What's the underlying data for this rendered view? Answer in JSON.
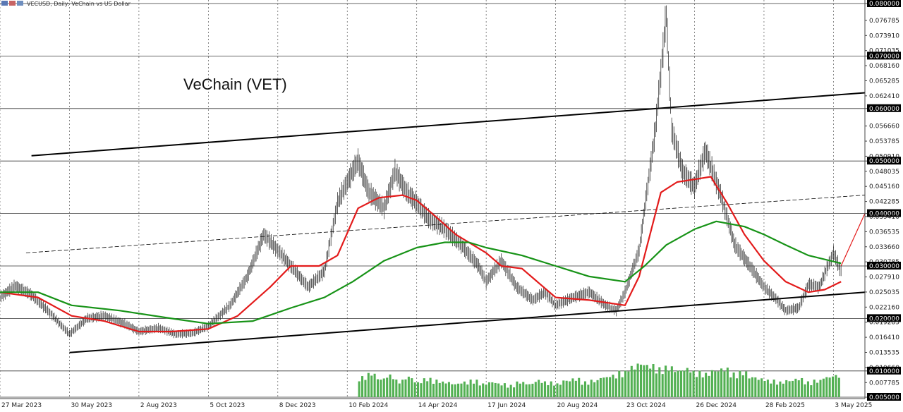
{
  "header": {
    "symbol_text": "VECUSD, Daily:  VeChain vs US Dollar"
  },
  "colors": {
    "candles": "#1a1a1a",
    "ma_fast": "#e31b1b",
    "ma_slow": "#179317",
    "volume": "#52b052",
    "trend_lines": "#000000",
    "projection": "#e31b1b",
    "grid": "#555555"
  },
  "chart_data": {
    "type": "line",
    "title": "VeChain (VET)",
    "xlabel": "",
    "ylabel": "",
    "ylim": [
      0.005,
      0.08
    ],
    "x_start": "2023-03-27",
    "x_end": "2025-06-01",
    "x_ticks": [
      "27 Mar 2023",
      "30 May 2023",
      "2 Aug 2023",
      "5 Oct 2023",
      "8 Dec 2023",
      "10 Feb 2024",
      "14 Apr 2024",
      "17 Jun 2024",
      "20 Aug 2024",
      "23 Oct 2024",
      "26 Dec 2024",
      "28 Feb 2025",
      "3 May 2025"
    ],
    "x_tick_dates": [
      "2023-03-27",
      "2023-05-30",
      "2023-08-02",
      "2023-10-05",
      "2023-12-08",
      "2024-02-10",
      "2024-04-14",
      "2024-06-17",
      "2024-08-20",
      "2024-10-23",
      "2024-12-26",
      "2025-02-28",
      "2025-05-03"
    ],
    "y_ticks": [
      "0.080000",
      "0.076785",
      "0.073910",
      "0.071035",
      "0.070000",
      "0.068160",
      "0.065285",
      "0.062410",
      "0.060000",
      "0.056660",
      "0.053785",
      "0.050910",
      "0.050000",
      "0.048035",
      "0.045160",
      "0.042285",
      "0.040000",
      "0.039410",
      "0.036535",
      "0.033660",
      "0.030785",
      "0.030000",
      "0.027910",
      "0.025035",
      "0.022160",
      "0.020000",
      "0.019285",
      "0.016410",
      "0.013535",
      "0.010660",
      "0.010000",
      "0.007785",
      "0.005000"
    ],
    "highlighted_levels": [
      "0.080000",
      "0.070000",
      "0.060000",
      "0.050000",
      "0.040000",
      "0.030000",
      "0.020000",
      "0.010000",
      "0.005000"
    ],
    "series": [
      {
        "name": "",
        "role": "price",
        "x": [
          "2023-03-27",
          "2023-04-10",
          "2023-04-25",
          "2023-05-10",
          "2023-05-30",
          "2023-06-15",
          "2023-07-01",
          "2023-07-20",
          "2023-08-02",
          "2023-08-20",
          "2023-09-05",
          "2023-09-20",
          "2023-10-05",
          "2023-10-25",
          "2023-11-10",
          "2023-11-25",
          "2023-12-08",
          "2023-12-20",
          "2024-01-05",
          "2024-01-20",
          "2024-02-01",
          "2024-02-10",
          "2024-02-20",
          "2024-03-01",
          "2024-03-15",
          "2024-03-25",
          "2024-04-05",
          "2024-04-14",
          "2024-04-25",
          "2024-05-10",
          "2024-05-25",
          "2024-06-10",
          "2024-06-17",
          "2024-07-01",
          "2024-07-15",
          "2024-07-30",
          "2024-08-10",
          "2024-08-20",
          "2024-09-05",
          "2024-09-20",
          "2024-10-05",
          "2024-10-15",
          "2024-10-23",
          "2024-11-05",
          "2024-11-12",
          "2024-11-20",
          "2024-11-30",
          "2024-12-05",
          "2024-12-15",
          "2024-12-26",
          "2025-01-05",
          "2025-01-20",
          "2025-02-01",
          "2025-02-15",
          "2025-02-28",
          "2025-03-10",
          "2025-03-20",
          "2025-04-01",
          "2025-04-10",
          "2025-04-20",
          "2025-05-03",
          "2025-05-10"
        ],
        "values": [
          0.024,
          0.0262,
          0.0245,
          0.0215,
          0.017,
          0.02,
          0.0205,
          0.019,
          0.0175,
          0.0182,
          0.017,
          0.0172,
          0.0185,
          0.0225,
          0.028,
          0.036,
          0.033,
          0.03,
          0.026,
          0.029,
          0.042,
          0.046,
          0.05,
          0.044,
          0.041,
          0.048,
          0.044,
          0.042,
          0.039,
          0.037,
          0.034,
          0.03,
          0.027,
          0.031,
          0.026,
          0.0235,
          0.025,
          0.0225,
          0.024,
          0.025,
          0.0225,
          0.0215,
          0.025,
          0.033,
          0.044,
          0.056,
          0.078,
          0.056,
          0.048,
          0.045,
          0.052,
          0.043,
          0.034,
          0.03,
          0.026,
          0.024,
          0.0215,
          0.022,
          0.0265,
          0.026,
          0.0325,
          0.029
        ]
      },
      {
        "name": "",
        "role": "ma_fast",
        "x": [
          "2023-03-27",
          "2023-05-01",
          "2023-06-01",
          "2023-07-01",
          "2023-08-02",
          "2023-09-01",
          "2023-10-05",
          "2023-11-01",
          "2023-12-01",
          "2023-12-20",
          "2024-01-15",
          "2024-02-01",
          "2024-02-20",
          "2024-03-10",
          "2024-04-01",
          "2024-04-14",
          "2024-05-01",
          "2024-05-20",
          "2024-06-17",
          "2024-07-01",
          "2024-07-20",
          "2024-08-20",
          "2024-09-20",
          "2024-10-23",
          "2024-11-05",
          "2024-11-25",
          "2024-12-10",
          "2024-12-26",
          "2025-01-10",
          "2025-01-25",
          "2025-02-10",
          "2025-02-28",
          "2025-03-20",
          "2025-04-10",
          "2025-04-25",
          "2025-05-10"
        ],
        "values": [
          0.025,
          0.024,
          0.0205,
          0.0195,
          0.0175,
          0.0175,
          0.018,
          0.0205,
          0.026,
          0.03,
          0.03,
          0.032,
          0.041,
          0.043,
          0.0435,
          0.0425,
          0.0395,
          0.036,
          0.0325,
          0.03,
          0.0295,
          0.024,
          0.0235,
          0.0225,
          0.028,
          0.044,
          0.046,
          0.0465,
          0.047,
          0.042,
          0.036,
          0.031,
          0.027,
          0.025,
          0.0255,
          0.027
        ]
      },
      {
        "name": "",
        "role": "ma_slow",
        "x": [
          "2023-03-27",
          "2023-05-01",
          "2023-06-01",
          "2023-07-15",
          "2023-09-01",
          "2023-10-05",
          "2023-11-15",
          "2023-12-20",
          "2024-01-20",
          "2024-02-15",
          "2024-03-15",
          "2024-04-14",
          "2024-05-10",
          "2024-06-01",
          "2024-06-17",
          "2024-07-20",
          "2024-08-20",
          "2024-09-20",
          "2024-10-23",
          "2024-11-10",
          "2024-11-30",
          "2024-12-26",
          "2025-01-15",
          "2025-02-10",
          "2025-02-28",
          "2025-03-20",
          "2025-04-10",
          "2025-05-10"
        ],
        "values": [
          0.025,
          0.025,
          0.0225,
          0.0215,
          0.02,
          0.019,
          0.0195,
          0.022,
          0.024,
          0.027,
          0.031,
          0.0335,
          0.0345,
          0.0345,
          0.0335,
          0.032,
          0.03,
          0.028,
          0.027,
          0.03,
          0.034,
          0.037,
          0.0385,
          0.0375,
          0.036,
          0.034,
          0.032,
          0.0305
        ]
      }
    ],
    "trend_lines": [
      {
        "name": "",
        "style": "solid",
        "x": [
          "2023-05-30",
          "2025-06-01"
        ],
        "values": [
          0.0135,
          0.025
        ]
      },
      {
        "name": "",
        "style": "solid",
        "x": [
          "2023-04-25",
          "2025-06-01"
        ],
        "values": [
          0.051,
          0.063
        ]
      },
      {
        "name": "",
        "style": "dashed",
        "x": [
          "2023-04-20",
          "2025-06-01"
        ],
        "values": [
          0.0325,
          0.0435
        ]
      },
      {
        "name": "",
        "style": "projection",
        "x": [
          "2025-05-10",
          "2025-06-01"
        ],
        "values": [
          0.03,
          0.04
        ]
      }
    ],
    "volume": {
      "x_start": "2024-02-20",
      "x_end": "2025-05-10",
      "values": [
        0.6,
        0.7,
        0.55,
        0.65,
        0.5,
        0.6,
        0.45,
        0.55,
        0.5,
        0.45,
        0.4,
        0.45,
        0.5,
        0.4,
        0.45,
        0.4,
        0.35,
        0.45,
        0.4,
        0.5,
        0.45,
        0.4,
        0.5,
        0.55,
        0.45,
        0.5,
        0.6,
        0.65,
        0.75,
        0.9,
        1.0,
        0.95,
        0.85,
        0.9,
        0.8,
        0.85,
        0.75,
        0.7,
        0.8,
        0.85,
        0.7,
        0.75,
        0.6,
        0.55,
        0.5,
        0.45,
        0.5,
        0.55,
        0.45,
        0.5,
        0.6,
        0.65
      ]
    }
  }
}
